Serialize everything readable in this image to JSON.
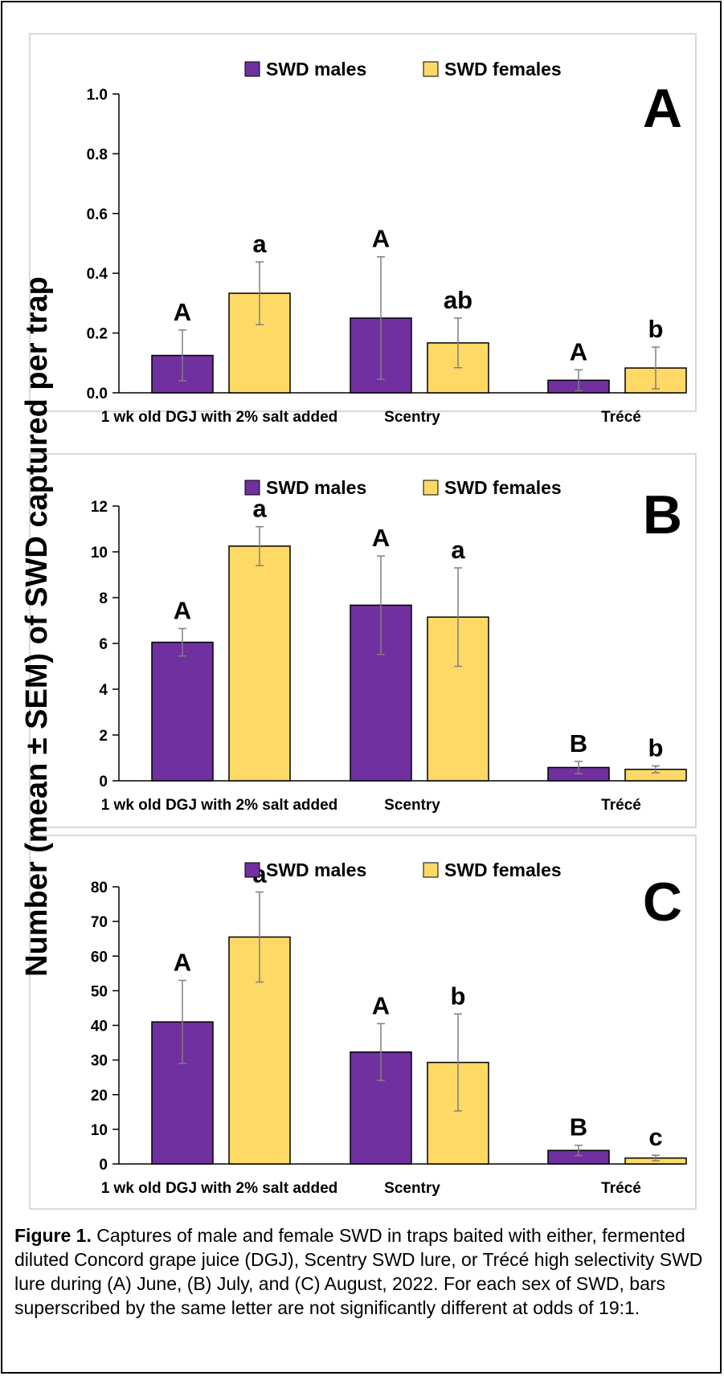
{
  "y_axis_label": "Number (mean ± SEM) of SWD captured per trap",
  "caption": {
    "lead": "Figure 1.",
    "text": "Captures of male and female SWD in traps baited with either, fermented diluted Concord grape juice (DGJ), Scentry SWD lure, or Trécé high selectivity SWD lure during (A) June, (B) July, and (C) August, 2022. For each sex of SWD, bars superscribed by the same letter are not significantly different at odds of 19:1."
  },
  "colors": {
    "males": "#7030A0",
    "females": "#FFD966",
    "panel_border": "#D9D9D9",
    "error_bar": "#7F7F7F"
  },
  "chart_data": [
    {
      "panel": "A",
      "type": "bar",
      "categories": [
        "1 wk old DGJ with 2% salt added",
        "Scentry",
        "Trécé"
      ],
      "ylim": [
        0,
        1.0
      ],
      "yticks": [
        0.0,
        0.2,
        0.4,
        0.6,
        0.8,
        1.0
      ],
      "yticks_labels": [
        "0.0",
        "0.2",
        "0.4",
        "0.6",
        "0.8",
        "1.0"
      ],
      "legend": "top",
      "series": [
        {
          "name": "SWD males",
          "values": [
            0.125,
            0.25,
            0.042
          ],
          "errors": [
            0.085,
            0.205,
            0.035
          ],
          "letters": [
            "A",
            "A",
            "A"
          ]
        },
        {
          "name": "SWD females",
          "values": [
            0.333,
            0.167,
            0.083
          ],
          "errors": [
            0.105,
            0.083,
            0.07
          ],
          "letters": [
            "a",
            "ab",
            "b"
          ]
        }
      ]
    },
    {
      "panel": "B",
      "type": "bar",
      "categories": [
        "1 wk old DGJ with 2% salt added",
        "Scentry",
        "Trécé"
      ],
      "ylim": [
        0,
        12
      ],
      "yticks": [
        0,
        2,
        4,
        6,
        8,
        10,
        12
      ],
      "yticks_labels": [
        "0",
        "2",
        "4",
        "6",
        "8",
        "10",
        "12"
      ],
      "legend": "top",
      "series": [
        {
          "name": "SWD males",
          "values": [
            6.05,
            7.67,
            0.58
          ],
          "errors": [
            0.6,
            2.15,
            0.27
          ],
          "letters": [
            "A",
            "A",
            "B"
          ]
        },
        {
          "name": "SWD females",
          "values": [
            10.25,
            7.15,
            0.5
          ],
          "errors": [
            0.85,
            2.15,
            0.15
          ],
          "letters": [
            "a",
            "a",
            "b"
          ]
        }
      ]
    },
    {
      "panel": "C",
      "type": "bar",
      "categories": [
        "1 wk old DGJ with 2% salt added",
        "Scentry",
        "Trécé"
      ],
      "ylim": [
        0,
        80
      ],
      "yticks": [
        0,
        10,
        20,
        30,
        40,
        50,
        60,
        70,
        80
      ],
      "yticks_labels": [
        "0",
        "10",
        "20",
        "30",
        "40",
        "50",
        "60",
        "70",
        "80"
      ],
      "legend": "top",
      "series": [
        {
          "name": "SWD males",
          "values": [
            41,
            32.3,
            3.9
          ],
          "errors": [
            12,
            8.2,
            1.5
          ],
          "letters": [
            "A",
            "A",
            "B"
          ]
        },
        {
          "name": "SWD females",
          "values": [
            65.5,
            29.3,
            1.7
          ],
          "errors": [
            13,
            14,
            0.8
          ],
          "letters": [
            "a",
            "b",
            "c"
          ]
        }
      ]
    }
  ]
}
